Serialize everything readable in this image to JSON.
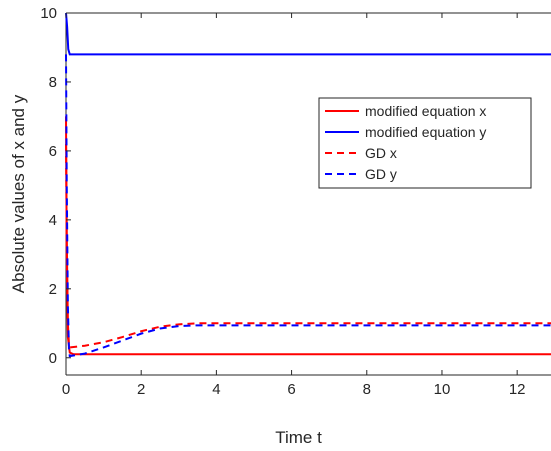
{
  "chart_data": {
    "type": "line",
    "title": "",
    "xlabel": "Time t",
    "ylabel": "Absolute values of x and y",
    "xlim": [
      0,
      12.9
    ],
    "ylim": [
      -0.5,
      10
    ],
    "xticks": [
      "0",
      "2",
      "4",
      "6",
      "8",
      "10",
      "12"
    ],
    "yticks": [
      "0",
      "2",
      "4",
      "6",
      "8",
      "10"
    ],
    "grid": false,
    "legend_position": "top-right",
    "series": [
      {
        "name": "modified equation x",
        "color": "#ff0000",
        "dash": "solid",
        "x": [
          0,
          0.02,
          0.05,
          0.1,
          0.2,
          1,
          4,
          8,
          12.9
        ],
        "y": [
          7.0,
          3.0,
          0.6,
          0.15,
          0.1,
          0.1,
          0.1,
          0.1,
          0.1
        ]
      },
      {
        "name": "modified equation y",
        "color": "#0000ff",
        "dash": "solid",
        "x": [
          0,
          0.03,
          0.06,
          0.1,
          0.2,
          1,
          4,
          8,
          12.9
        ],
        "y": [
          10.0,
          9.6,
          8.95,
          8.8,
          8.8,
          8.8,
          8.8,
          8.8,
          8.8
        ]
      },
      {
        "name": "GD x",
        "color": "#ff0000",
        "dash": "dashed",
        "x": [
          0,
          0.02,
          0.05,
          0.08,
          0.1,
          0.5,
          1,
          1.5,
          2,
          2.5,
          3,
          3.5,
          4,
          6,
          8,
          10,
          12.9
        ],
        "y": [
          6.2,
          3.5,
          1.0,
          0.35,
          0.3,
          0.35,
          0.45,
          0.6,
          0.77,
          0.9,
          0.97,
          1.0,
          1.0,
          1.0,
          1.0,
          1.0,
          1.0
        ]
      },
      {
        "name": "GD y",
        "color": "#0000ff",
        "dash": "dashed",
        "x": [
          0,
          0.02,
          0.05,
          0.08,
          0.1,
          0.5,
          1,
          1.5,
          2,
          2.5,
          3,
          3.5,
          4,
          6,
          8,
          10,
          12.9
        ],
        "y": [
          8.8,
          5.0,
          1.5,
          0.2,
          0.05,
          0.12,
          0.3,
          0.5,
          0.7,
          0.85,
          0.92,
          0.94,
          0.94,
          0.94,
          0.94,
          0.94,
          0.94
        ]
      }
    ]
  }
}
